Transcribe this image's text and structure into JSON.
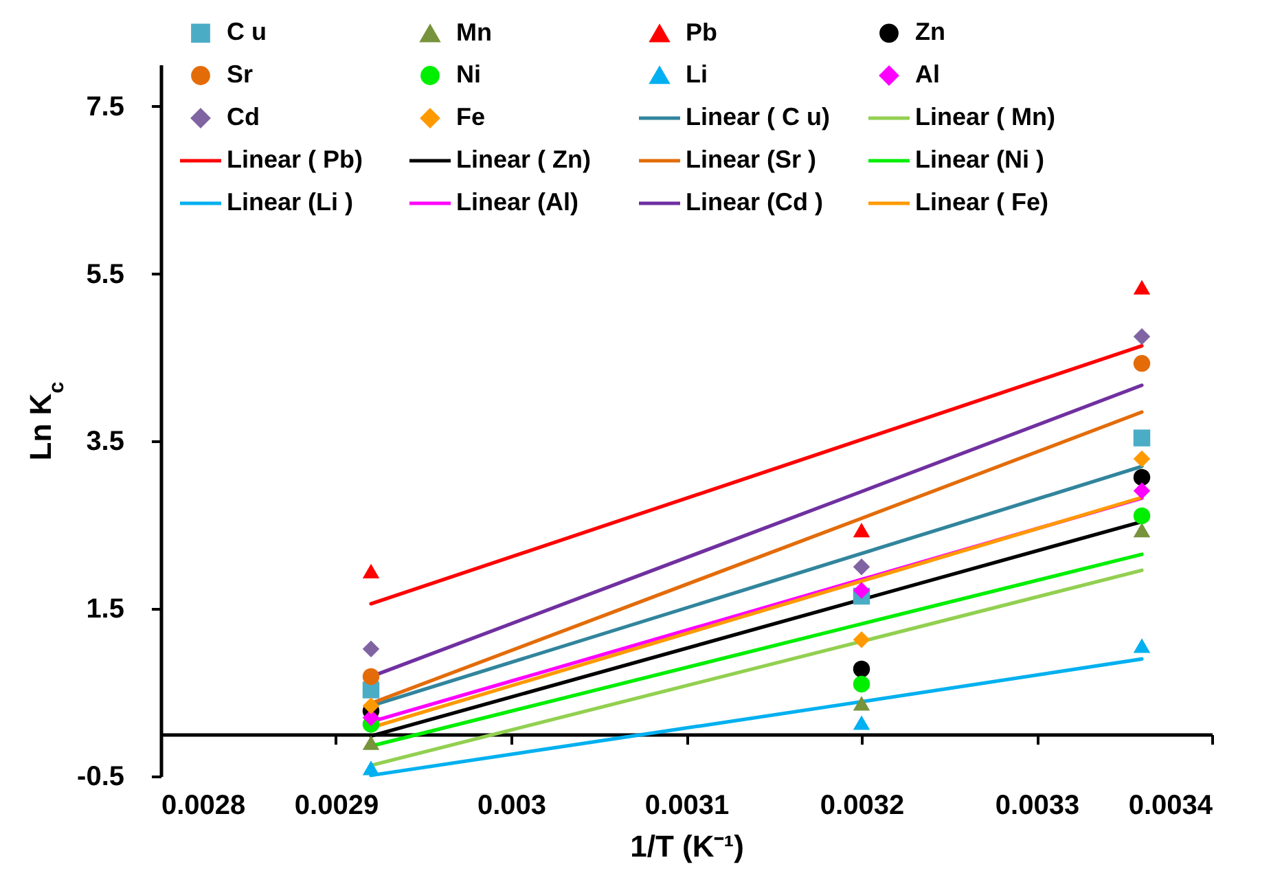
{
  "chart_data": {
    "type": "scatter",
    "xlabel": "1/T (K⁻¹)",
    "ylabel": "Ln K$_{c}$",
    "x": [
      0.00292,
      0.0032,
      0.00336
    ],
    "xlim": [
      0.0028,
      0.0034
    ],
    "xticks": [
      0.0028,
      0.0029,
      0.003,
      0.0031,
      0.0032,
      0.0033,
      0.0034
    ],
    "ylim": [
      -0.5,
      8
    ],
    "yticks": [
      -0.5,
      1.5,
      3.5,
      5.5,
      7.5
    ],
    "grid": false,
    "legend": "top",
    "line_style": "solid",
    "series": [
      {
        "name": "C u",
        "type": "scatter",
        "marker": "square",
        "color": "#4bacc6",
        "values": [
          0.53,
          1.65,
          3.54
        ]
      },
      {
        "name": "Mn",
        "type": "scatter",
        "marker": "triangle",
        "color": "#77933c",
        "values": [
          -0.1,
          0.37,
          2.44
        ]
      },
      {
        "name": "Pb",
        "type": "scatter",
        "marker": "triangle",
        "color": "#ff0000",
        "values": [
          1.95,
          2.44,
          5.34
        ]
      },
      {
        "name": "Zn",
        "type": "scatter",
        "marker": "circle",
        "color": "#000000",
        "values": [
          0.28,
          0.78,
          3.07
        ]
      },
      {
        "name": "Sr",
        "type": "scatter",
        "marker": "circle",
        "color": "#e36c09",
        "values": [
          0.69,
          null,
          4.43
        ]
      },
      {
        "name": "Ni",
        "type": "scatter",
        "marker": "circle",
        "color": "#00ee00",
        "values": [
          0.12,
          0.6,
          2.61
        ]
      },
      {
        "name": "Li",
        "type": "scatter",
        "marker": "triangle",
        "color": "#00b0f0",
        "values": [
          -0.4,
          0.14,
          1.06
        ]
      },
      {
        "name": "Al",
        "type": "scatter",
        "marker": "diamond",
        "color": "#ff00ff",
        "values": [
          0.2,
          1.72,
          2.91
        ]
      },
      {
        "name": "Cd",
        "type": "scatter",
        "marker": "diamond",
        "color": "#8064a2",
        "values": [
          1.02,
          2.0,
          4.75
        ]
      },
      {
        "name": "Fe",
        "type": "scatter",
        "marker": "diamond",
        "color": "#ff9900",
        "values": [
          0.34,
          1.13,
          3.29
        ]
      },
      {
        "name": "Linear ( C u)",
        "type": "line",
        "color": "#31859c",
        "values": [
          0.34,
          2.16,
          3.2
        ]
      },
      {
        "name": "Linear ( Mn)",
        "type": "line",
        "color": "#92d050",
        "values": [
          -0.37,
          1.11,
          1.96
        ]
      },
      {
        "name": "Linear ( Pb)",
        "type": "line",
        "color": "#ff0000",
        "values": [
          1.56,
          3.52,
          4.64
        ]
      },
      {
        "name": "Linear ( Zn)",
        "type": "line",
        "color": "#000000",
        "values": [
          -0.02,
          1.61,
          2.54
        ]
      },
      {
        "name": "Linear (Sr  )",
        "type": "line",
        "color": "#e36c09",
        "values": [
          0.37,
          2.58,
          3.85
        ]
      },
      {
        "name": "Linear (Ni )",
        "type": "line",
        "color": "#00ee00",
        "values": [
          -0.14,
          1.32,
          2.15
        ]
      },
      {
        "name": "Linear (Li )",
        "type": "line",
        "color": "#00b0f0",
        "values": [
          -0.49,
          0.39,
          0.9
        ]
      },
      {
        "name": "Linear (Al)",
        "type": "line",
        "color": "#ff00ff",
        "values": [
          0.15,
          1.85,
          2.82
        ]
      },
      {
        "name": "Linear (Cd )",
        "type": "line",
        "color": "#7030a0",
        "values": [
          0.69,
          2.9,
          4.17
        ]
      },
      {
        "name": "Linear ( Fe)",
        "type": "line",
        "color": "#ff9900",
        "values": [
          0.08,
          1.83,
          2.83
        ]
      }
    ]
  }
}
